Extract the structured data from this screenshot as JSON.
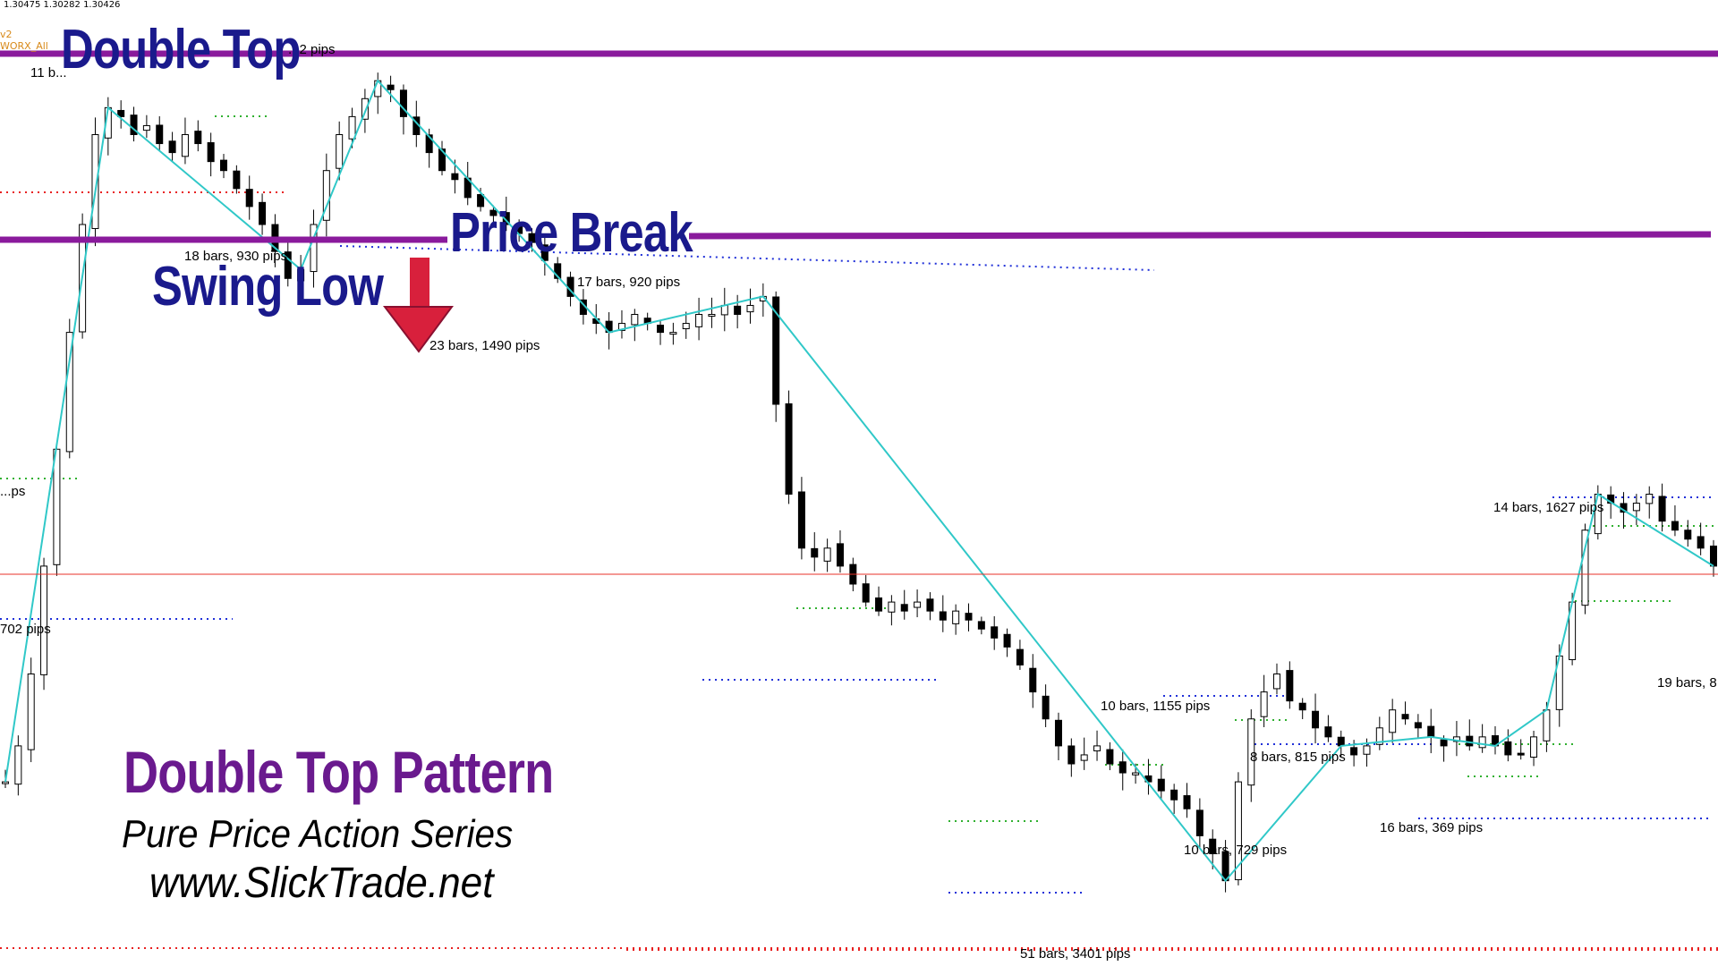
{
  "header": {
    "ohlc_text": "1.30475 1.30282 1.30426",
    "indicator_line_1": "v2",
    "indicator_line_2": "WORX_All"
  },
  "annotations": {
    "double_top": "Double Top",
    "price_break": "Price Break",
    "swing_low": "Swing Low"
  },
  "branding": {
    "title": "Double Top Pattern",
    "subtitle": "Pure Price Action Series",
    "website": "www.SlickTrade.net"
  },
  "colors": {
    "background": "#ffffff",
    "zigzag": "#30c8c8",
    "level_lines": "#8a1a9c",
    "annotation_text": "#1a1a8c",
    "pattern_title": "#6a1a8e",
    "current_price_line": "#e8322a",
    "arrow": "#d8203c",
    "dotted_red": "#e82020",
    "dotted_blue": "#2030d8",
    "dotted_green": "#30b030"
  },
  "chart_data": {
    "type": "candlestick",
    "title": "",
    "zigzag_labels": [
      "11 b...",
      "...2 pips",
      "18 bars, 930 pips",
      "23 bars, 1490 pips",
      "17 bars, 920 pips",
      "51 bars, 3401 pips",
      "10 bars, 1155 pips",
      "10 bars, 729 pips",
      "8 bars, 815 pips",
      "16 bars, 369 pips",
      "14 bars, 1627 pips",
      "19 bars, 8...",
      "...ps",
      "702 pips"
    ],
    "level_names": [
      "Double Top resistance",
      "Swing Low / Price Break support",
      "Current price"
    ],
    "price_path": [
      0.18,
      0.22,
      0.3,
      0.42,
      0.55,
      0.68,
      0.8,
      0.9,
      0.93,
      0.92,
      0.9,
      0.91,
      0.89,
      0.88,
      0.9,
      0.89,
      0.87,
      0.86,
      0.84,
      0.82,
      0.8,
      0.77,
      0.74,
      0.75,
      0.8,
      0.86,
      0.9,
      0.92,
      0.94,
      0.96,
      0.95,
      0.92,
      0.9,
      0.88,
      0.86,
      0.85,
      0.83,
      0.82,
      0.81,
      0.8,
      0.79,
      0.78,
      0.76,
      0.74,
      0.72,
      0.7,
      0.69,
      0.68,
      0.69,
      0.7,
      0.69,
      0.68,
      0.68,
      0.69,
      0.7,
      0.7,
      0.71,
      0.7,
      0.71,
      0.72,
      0.6,
      0.5,
      0.44,
      0.43,
      0.44,
      0.42,
      0.4,
      0.38,
      0.37,
      0.38,
      0.37,
      0.38,
      0.37,
      0.36,
      0.37,
      0.36,
      0.35,
      0.34,
      0.33,
      0.31,
      0.28,
      0.25,
      0.22,
      0.2,
      0.21,
      0.22,
      0.2,
      0.19,
      0.19,
      0.18,
      0.17,
      0.16,
      0.15,
      0.12,
      0.1,
      0.07,
      0.18,
      0.25,
      0.28,
      0.3,
      0.27,
      0.26,
      0.24,
      0.23,
      0.22,
      0.21,
      0.22,
      0.24,
      0.26,
      0.25,
      0.24,
      0.23,
      0.22,
      0.23,
      0.22,
      0.23,
      0.22,
      0.21,
      0.21,
      0.23,
      0.26,
      0.32,
      0.38,
      0.46,
      0.5,
      0.49,
      0.48,
      0.49,
      0.5,
      0.47,
      0.46,
      0.45,
      0.44,
      0.42
    ],
    "y_range": [
      0,
      1
    ]
  }
}
